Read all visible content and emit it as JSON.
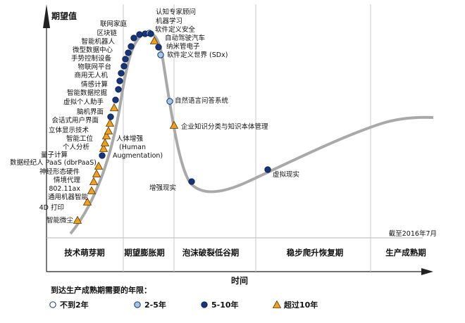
{
  "chart_data": {
    "type": "scatter",
    "ylabel": "期望值",
    "xlabel": "时间",
    "as_of": "截至2016年7月",
    "phases": [
      "技术萌芽期",
      "期望膨胀期",
      "泡沫破裂低谷期",
      "稳步爬升恢复期",
      "生产成熟期"
    ],
    "legend": {
      "title": "到达生产成熟期需要的年限：",
      "items": [
        {
          "key": "lt2",
          "label": "不到2年",
          "marker": "circle",
          "color": "#ffffff"
        },
        {
          "key": "y2to5",
          "label": "2-5年",
          "marker": "circle",
          "color": "#9fc7e8"
        },
        {
          "key": "y5to10",
          "label": "5-10年",
          "marker": "circle",
          "color": "#16357a"
        },
        {
          "key": "gt10",
          "label": "超过10年",
          "marker": "triangle",
          "color": "#f0a020"
        }
      ]
    },
    "curve_color": "#a9a9a9",
    "points": [
      {
        "label": "智能微尘",
        "cat": "gt10"
      },
      {
        "label": "4D 打印",
        "cat": "gt10"
      },
      {
        "label": "通用机器智能",
        "cat": "gt10"
      },
      {
        "label": "802.11ax",
        "cat": "gt10"
      },
      {
        "label": "情境代理",
        "cat": "gt10"
      },
      {
        "label": "神经形态硬件",
        "cat": "gt10"
      },
      {
        "label": "数据经纪人 PaaS (dbrPaaS)",
        "cat": "y5to10"
      },
      {
        "label": "量子计算",
        "cat": "gt10"
      },
      {
        "label": "个人分析",
        "cat": "gt10"
      },
      {
        "label": "人体增强",
        "cat": "gt10"
      },
      {
        "label": "(Human",
        "cat": "none"
      },
      {
        "label": "Augmentation)",
        "cat": "none"
      },
      {
        "label": "智能工位",
        "cat": "gt10"
      },
      {
        "label": "立体显示技术",
        "cat": "gt10"
      },
      {
        "label": "会话式用户界面",
        "cat": "y5to10"
      },
      {
        "label": "脑机界面",
        "cat": "gt10"
      },
      {
        "label": "虚拟个人助手",
        "cat": "y5to10"
      },
      {
        "label": "智能数据挖掘",
        "cat": "y5to10"
      },
      {
        "label": "情感计算",
        "cat": "y5to10"
      },
      {
        "label": "商用无人机",
        "cat": "y5to10"
      },
      {
        "label": "物联网平台",
        "cat": "y5to10"
      },
      {
        "label": "手势控制设备",
        "cat": "y5to10"
      },
      {
        "label": "微型数据中心",
        "cat": "y5to10"
      },
      {
        "label": "智能机器人",
        "cat": "y5to10"
      },
      {
        "label": "区块链",
        "cat": "y5to10"
      },
      {
        "label": "联网家庭",
        "cat": "y5to10"
      },
      {
        "label": "认知专家顾问",
        "cat": "y5to10"
      },
      {
        "label": "机器学习",
        "cat": "y2to5"
      },
      {
        "label": "软件定义安全",
        "cat": "y5to10"
      },
      {
        "label": "自动驾驶汽车",
        "cat": "gt10"
      },
      {
        "label": "纳米管电子",
        "cat": "y5to10"
      },
      {
        "label": "软件定义世界 (SDx)",
        "cat": "y2to5"
      },
      {
        "label": "自然语言问答系统",
        "cat": "y2to5"
      },
      {
        "label": "企业知识分类与知识本体管理",
        "cat": "gt10"
      },
      {
        "label": "增强现实",
        "cat": "y5to10"
      },
      {
        "label": "虚拟现实",
        "cat": "y5to10"
      }
    ]
  }
}
